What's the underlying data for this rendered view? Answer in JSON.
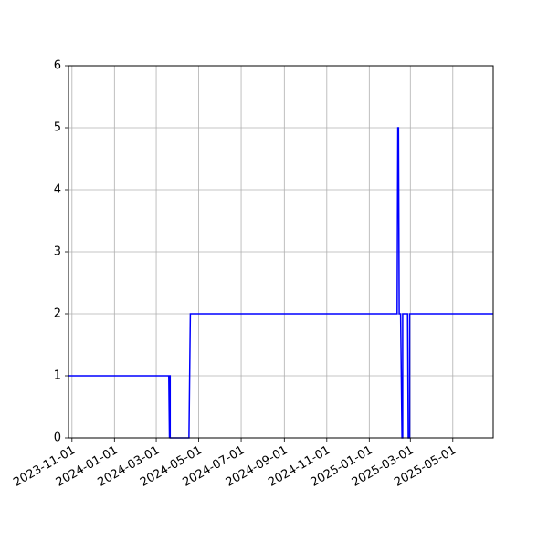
{
  "chart_data": {
    "type": "line",
    "title": "",
    "xlabel": "",
    "ylabel": "",
    "x_type": "date",
    "xlim": [
      "2023-10-27",
      "2025-06-28"
    ],
    "ylim": [
      0,
      6
    ],
    "x_ticks": [
      "2023-11-01",
      "2024-01-01",
      "2024-03-01",
      "2024-05-01",
      "2024-07-01",
      "2024-09-01",
      "2024-11-01",
      "2025-01-01",
      "2025-03-01",
      "2025-05-01"
    ],
    "y_ticks": [
      "0",
      "1",
      "2",
      "3",
      "4",
      "5",
      "6"
    ],
    "grid": true,
    "legend": "none",
    "series": [
      {
        "color": "#0000ff",
        "x": [
          "2023-10-27",
          "2024-03-19",
          "2024-03-20",
          "2024-03-20",
          "2024-03-21",
          "2024-03-21",
          "2024-04-17",
          "2024-04-19",
          "2025-02-10",
          "2025-02-11",
          "2025-02-12",
          "2025-02-13",
          "2025-02-14",
          "2025-02-15",
          "2025-02-17",
          "2025-02-17",
          "2025-02-18",
          "2025-02-18",
          "2025-02-25",
          "2025-02-26",
          "2025-02-26",
          "2025-02-28",
          "2025-02-28",
          "2025-03-01",
          "2025-06-28"
        ],
        "y": [
          1,
          1,
          0,
          1,
          1,
          0,
          0,
          2,
          2,
          5,
          5,
          2,
          2,
          2,
          0,
          0,
          0,
          2,
          2,
          0,
          0,
          0,
          2,
          2,
          2
        ]
      }
    ]
  }
}
